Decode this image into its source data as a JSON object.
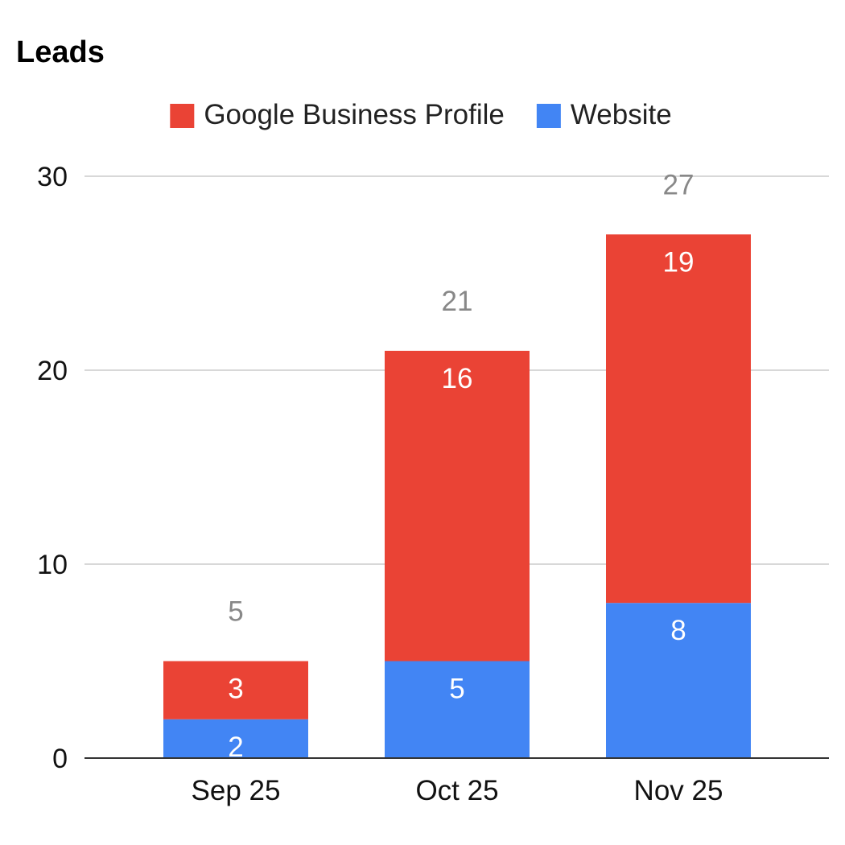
{
  "chart_data": {
    "type": "bar",
    "stacked": true,
    "title": "Leads",
    "xlabel": "",
    "ylabel": "",
    "categories": [
      "Sep 25",
      "Oct 25",
      "Nov 25"
    ],
    "series": [
      {
        "name": "Website",
        "values": [
          2,
          5,
          8
        ],
        "color": "#4285f4"
      },
      {
        "name": "Google Business Profile",
        "values": [
          3,
          16,
          19
        ],
        "color": "#ea4335"
      }
    ],
    "totals": [
      5,
      21,
      27
    ],
    "ylim": [
      0,
      30
    ],
    "yticks": [
      0,
      10,
      20,
      30
    ],
    "grid": true,
    "legend": "top",
    "legend_order": [
      "Google Business Profile",
      "Website"
    ],
    "colors": {
      "gridline": "#cccccc",
      "axis": "#333333",
      "total_label": "#888888"
    }
  }
}
